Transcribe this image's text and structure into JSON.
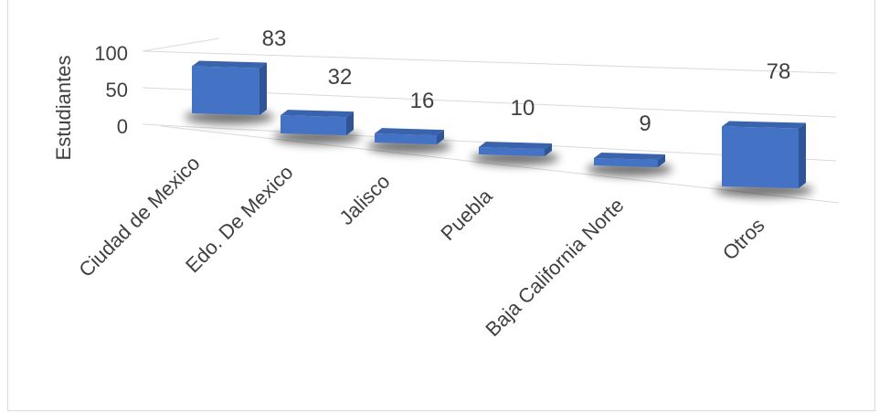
{
  "chart_data": {
    "type": "bar",
    "title": "",
    "xlabel": "",
    "ylabel": "Estudiantes",
    "categories": [
      "Ciudad de Mexico",
      "Edo. De Mexico",
      "Jalisco",
      "Puebla",
      "Baja California Norte",
      "Otros"
    ],
    "values": [
      83,
      32,
      16,
      10,
      9,
      78
    ],
    "ylim": [
      0,
      100
    ],
    "yticks": [
      0,
      50,
      100
    ],
    "grid": true,
    "legend": "none",
    "colors": {
      "bar_front": "#4472c4",
      "bar_side": "#2f5597",
      "bar_top": "#3a63ad",
      "gridline": "#d9d9d9",
      "text": "#404040"
    }
  }
}
